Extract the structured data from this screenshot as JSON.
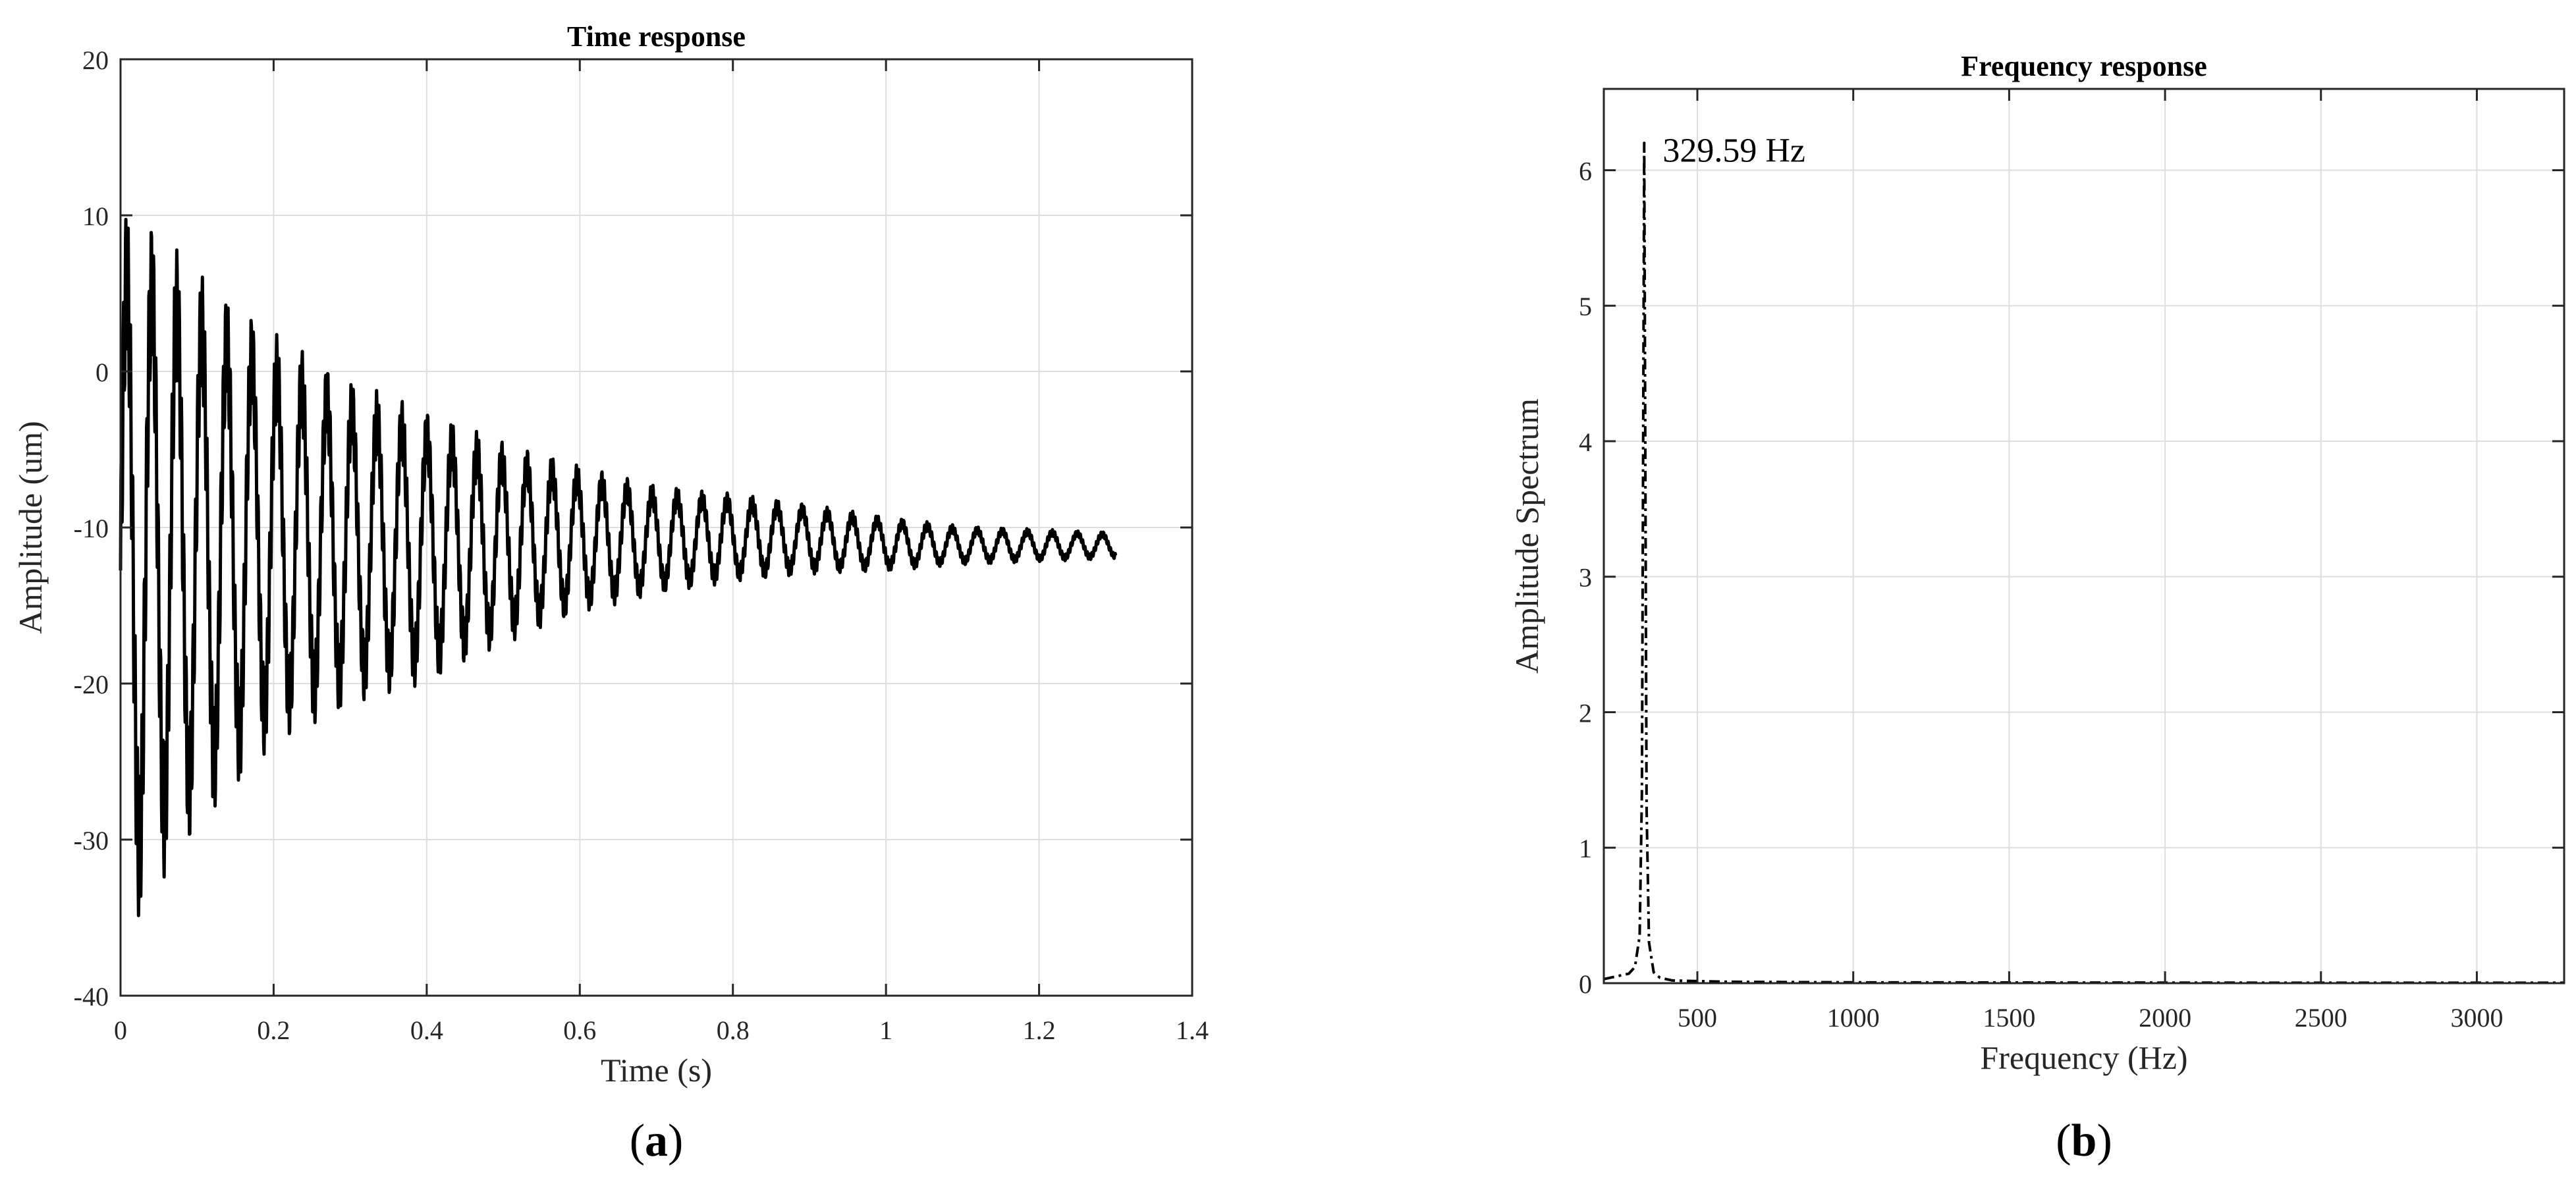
{
  "chart_data": [
    {
      "type": "line",
      "panel_label": "a",
      "title": "Time response",
      "xlabel": "Time (s)",
      "ylabel": "Amplitude (um)",
      "xlim": [
        0,
        1.4
      ],
      "ylim": [
        -40,
        20
      ],
      "xticks": [
        0,
        0.2,
        0.4,
        0.6,
        0.8,
        1,
        1.2,
        1.4
      ],
      "yticks": [
        -40,
        -30,
        -20,
        -10,
        0,
        10,
        20
      ],
      "grid": true,
      "color": "#000000",
      "series": [
        {
          "description": "decaying oscillation centred near -11.5 um",
          "t_end": 1.3,
          "x": [
            0,
            0.02,
            0.05,
            0.1,
            0.2,
            0.3,
            0.4,
            0.5,
            0.6,
            0.7,
            0.8,
            0.9,
            1.0,
            1.1,
            1.2,
            1.3
          ],
          "y_upper": [
            10.5,
            10.5,
            9.0,
            6.5,
            2.5,
            -0.5,
            -2.5,
            -4.5,
            -6.0,
            -7.3,
            -7.8,
            -8.5,
            -9.3,
            -9.9,
            -10.1,
            -10.3
          ],
          "y_lower": [
            -36.0,
            -35.5,
            -33.0,
            -29.5,
            -24.0,
            -21.5,
            -20.0,
            -17.5,
            -15.5,
            -14.3,
            -13.5,
            -13.0,
            -12.8,
            -12.4,
            -12.2,
            -12.0
          ]
        }
      ]
    },
    {
      "type": "line",
      "panel_label": "b",
      "title": "Frequency response",
      "xlabel": "Frequency (Hz)",
      "ylabel": "Amplitude Spectrum",
      "xlim": [
        200,
        3280
      ],
      "ylim": [
        0,
        6.6
      ],
      "xticks": [
        500,
        1000,
        1500,
        2000,
        2500,
        3000
      ],
      "yticks": [
        0,
        1,
        2,
        3,
        4,
        5,
        6
      ],
      "grid": true,
      "line_style": "dash-dot",
      "color": "#000000",
      "annotation": "329.59 Hz",
      "series": [
        {
          "x": [
            200,
            240,
            280,
            300,
            315,
            322,
            326,
            329.59,
            333,
            337,
            345,
            360,
            380,
            420,
            500,
            600,
            800,
            1000,
            1500,
            2000,
            2500,
            3000,
            3280
          ],
          "y": [
            0.03,
            0.05,
            0.07,
            0.12,
            0.35,
            1.4,
            3.8,
            6.2,
            3.9,
            1.3,
            0.3,
            0.08,
            0.04,
            0.02,
            0.015,
            0.01,
            0.008,
            0.006,
            0.005,
            0.004,
            0.003,
            0.003,
            0.003
          ]
        }
      ]
    }
  ]
}
